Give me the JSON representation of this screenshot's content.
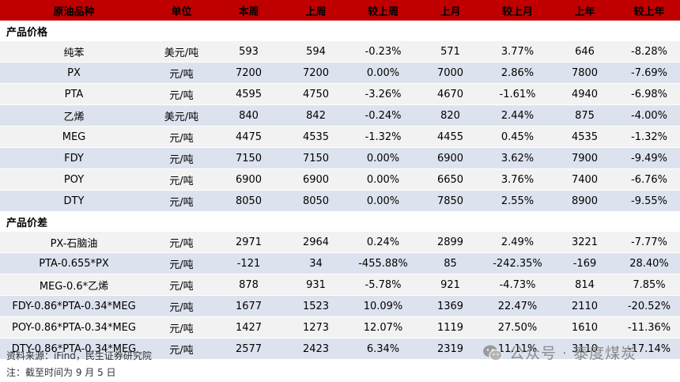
{
  "header": [
    "原油品种",
    "单位",
    "本周",
    "上周",
    "较上周",
    "上月",
    "较上月",
    "上年",
    "较上年"
  ],
  "sections": [
    {
      "title": "产品价格",
      "rows": [
        {
          "name": "纯苯",
          "unit": "美元/吨",
          "this_week": "593",
          "last_week": "594",
          "wow": "-0.23%",
          "last_month": "571",
          "mom": "3.77%",
          "last_year": "646",
          "yoy": "-8.28%"
        },
        {
          "name": "PX",
          "unit": "元/吨",
          "this_week": "7200",
          "last_week": "7200",
          "wow": "0.00%",
          "last_month": "7000",
          "mom": "2.86%",
          "last_year": "7800",
          "yoy": "-7.69%"
        },
        {
          "name": "PTA",
          "unit": "元/吨",
          "this_week": "4595",
          "last_week": "4750",
          "wow": "-3.26%",
          "last_month": "4670",
          "mom": "-1.61%",
          "last_year": "4940",
          "yoy": "-6.98%"
        },
        {
          "name": "乙烯",
          "unit": "美元/吨",
          "this_week": "840",
          "last_week": "842",
          "wow": "-0.24%",
          "last_month": "820",
          "mom": "2.44%",
          "last_year": "875",
          "yoy": "-4.00%"
        },
        {
          "name": "MEG",
          "unit": "元/吨",
          "this_week": "4475",
          "last_week": "4535",
          "wow": "-1.32%",
          "last_month": "4455",
          "mom": "0.45%",
          "last_year": "4535",
          "yoy": "-1.32%"
        },
        {
          "name": "FDY",
          "unit": "元/吨",
          "this_week": "7150",
          "last_week": "7150",
          "wow": "0.00%",
          "last_month": "6900",
          "mom": "3.62%",
          "last_year": "7900",
          "yoy": "-9.49%"
        },
        {
          "name": "POY",
          "unit": "元/吨",
          "this_week": "6900",
          "last_week": "6900",
          "wow": "0.00%",
          "last_month": "6650",
          "mom": "3.76%",
          "last_year": "7400",
          "yoy": "-6.76%"
        },
        {
          "name": "DTY",
          "unit": "元/吨",
          "this_week": "8050",
          "last_week": "8050",
          "wow": "0.00%",
          "last_month": "7850",
          "mom": "2.55%",
          "last_year": "8900",
          "yoy": "-9.55%"
        }
      ]
    },
    {
      "title": "产品价差",
      "rows": [
        {
          "name": "PX-石脑油",
          "unit": "元/吨",
          "this_week": "2971",
          "last_week": "2964",
          "wow": "0.24%",
          "last_month": "2899",
          "mom": "2.49%",
          "last_year": "3221",
          "yoy": "-7.77%"
        },
        {
          "name": "PTA-0.655*PX",
          "unit": "元/吨",
          "this_week": "-121",
          "last_week": "34",
          "wow": "-455.88%",
          "last_month": "85",
          "mom": "-242.35%",
          "last_year": "-169",
          "yoy": "28.40%"
        },
        {
          "name": "MEG-0.6*乙烯",
          "unit": "元/吨",
          "this_week": "878",
          "last_week": "931",
          "wow": "-5.78%",
          "last_month": "921",
          "mom": "-4.73%",
          "last_year": "814",
          "yoy": "7.85%"
        },
        {
          "name": "FDY-0.86*PTA-0.34*MEG",
          "unit": "元/吨",
          "this_week": "1677",
          "last_week": "1523",
          "wow": "10.09%",
          "last_month": "1369",
          "mom": "22.47%",
          "last_year": "2110",
          "yoy": "-20.52%"
        },
        {
          "name": "POY-0.86*PTA-0.34*MEG",
          "unit": "元/吨",
          "this_week": "1427",
          "last_week": "1273",
          "wow": "12.07%",
          "last_month": "1119",
          "mom": "27.50%",
          "last_year": "1610",
          "yoy": "-11.36%"
        },
        {
          "name": "DTY-0.86*PTA-0.34*MEG",
          "unit": "元/吨",
          "this_week": "2577",
          "last_week": "2423",
          "wow": "6.34%",
          "last_month": "2319",
          "mom": "11.11%",
          "last_year": "3110",
          "yoy": "-17.14%"
        }
      ]
    }
  ],
  "footer": {
    "source": "资料来源：iFind，民生证券研究院",
    "note": "注：截至时间为 9 月 5 日"
  },
  "watermark": {
    "icon": "wechat-icon",
    "text": "公众号 · 泰度煤炭"
  },
  "colors": {
    "header_bg": "#c00000",
    "row_light": "#f2f2f2",
    "row_blue": "#dde3ee",
    "negative": "#0b8a12",
    "positive": "#d00000"
  }
}
